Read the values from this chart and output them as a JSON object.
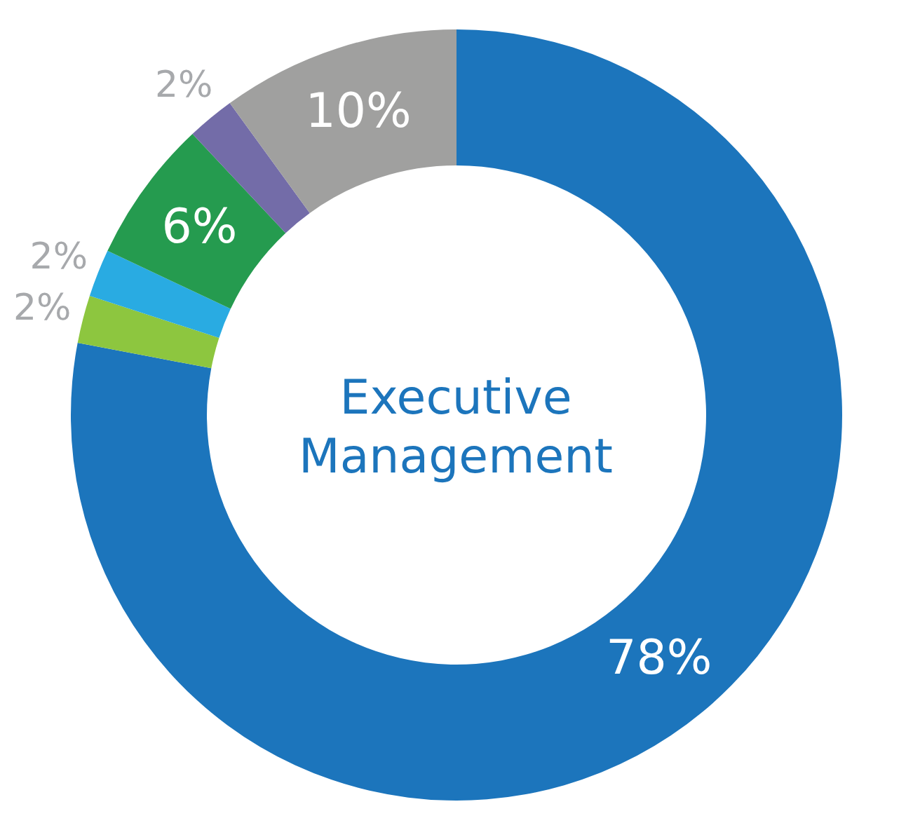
{
  "chart_data": {
    "type": "donut",
    "title": "Executive Management",
    "categories": [
      null,
      null,
      null,
      null,
      null,
      null
    ],
    "values": [
      78,
      2,
      2,
      6,
      2,
      10
    ],
    "colors": [
      "#1c75bc",
      "#8dc63f",
      "#29abe2",
      "#259b4f",
      "#736ca8",
      "#a0a09f"
    ],
    "value_labels": [
      "78%",
      "2%",
      "2%",
      "6%",
      "2%",
      "10%"
    ]
  }
}
